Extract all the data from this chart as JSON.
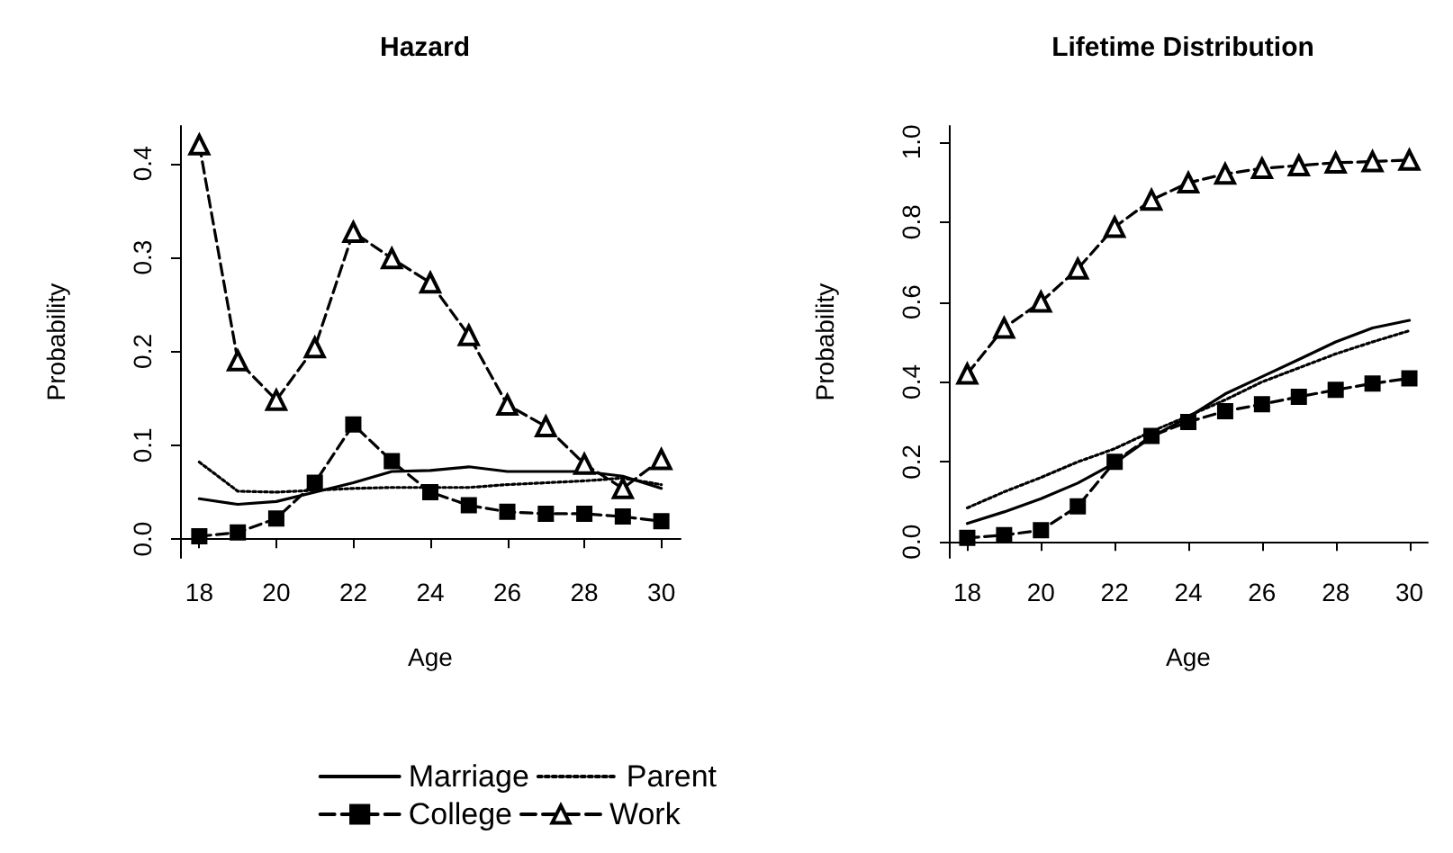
{
  "chart_data": [
    {
      "type": "line",
      "title": "Hazard",
      "xlabel": "Age",
      "ylabel": "Probability",
      "x": [
        18,
        19,
        20,
        21,
        22,
        23,
        24,
        25,
        26,
        27,
        28,
        29,
        30
      ],
      "xlim": [
        17.5,
        30.5
      ],
      "xticks": [
        18,
        20,
        22,
        24,
        26,
        28,
        30
      ],
      "ylim": [
        -0.02,
        0.44
      ],
      "yticks": [
        {
          "value": 0,
          "label": "0.0"
        },
        {
          "value": 0.1,
          "label": "0.1"
        },
        {
          "value": 0.2,
          "label": "0.2"
        },
        {
          "value": 0.3,
          "label": "0.3"
        },
        {
          "value": 0.4,
          "label": "0.4"
        }
      ],
      "grid": false,
      "legend": "bottom right",
      "series": [
        {
          "name": "Marriage",
          "color": "#000000",
          "line_style": "solid",
          "marker": "none",
          "values": [
            0.043,
            0.037,
            0.04,
            0.05,
            0.06,
            0.072,
            0.073,
            0.077,
            0.072,
            0.072,
            0.072,
            0.067,
            0.054
          ]
        },
        {
          "name": "Parent",
          "color": "#000000",
          "line_style": "dotted",
          "marker": "none",
          "values": [
            0.082,
            0.051,
            0.05,
            0.052,
            0.054,
            0.055,
            0.055,
            0.055,
            0.058,
            0.06,
            0.062,
            0.065,
            0.058
          ]
        },
        {
          "name": "College",
          "color": "#000000",
          "line_style": "dashed",
          "marker": "square",
          "values": [
            0.003,
            0.007,
            0.022,
            0.06,
            0.122,
            0.083,
            0.05,
            0.036,
            0.029,
            0.027,
            0.027,
            0.024,
            0.019
          ]
        },
        {
          "name": "Work",
          "color": "#000000",
          "line_style": "dashed",
          "marker": "triangle",
          "values": [
            0.42,
            0.19,
            0.148,
            0.204,
            0.327,
            0.299,
            0.273,
            0.217,
            0.143,
            0.12,
            0.08,
            0.054,
            0.085
          ]
        }
      ]
    },
    {
      "type": "line",
      "title": "Lifetime Distribution",
      "xlabel": "Age",
      "ylabel": "Probability",
      "x": [
        18,
        19,
        20,
        21,
        22,
        23,
        24,
        25,
        26,
        27,
        28,
        29,
        30
      ],
      "xlim": [
        17.5,
        30.5
      ],
      "xticks": [
        18,
        20,
        22,
        24,
        26,
        28,
        30
      ],
      "ylim": [
        -0.04,
        1.04
      ],
      "yticks": [
        {
          "value": 0,
          "label": "0.0"
        },
        {
          "value": 0.2,
          "label": "0.2"
        },
        {
          "value": 0.4,
          "label": "0.4"
        },
        {
          "value": 0.6,
          "label": "0.6"
        },
        {
          "value": 0.8,
          "label": "0.8"
        },
        {
          "value": 1,
          "label": "1.0"
        }
      ],
      "grid": false,
      "series": [
        {
          "color": "#000000",
          "line_style": "solid",
          "marker": "none",
          "values": [
            0.046,
            0.075,
            0.108,
            0.147,
            0.197,
            0.262,
            0.312,
            0.37,
            0.413,
            0.456,
            0.5,
            0.535,
            0.554
          ]
        },
        {
          "color": "#000000",
          "line_style": "dotted",
          "marker": "none",
          "values": [
            0.085,
            0.125,
            0.161,
            0.2,
            0.233,
            0.276,
            0.315,
            0.355,
            0.4,
            0.435,
            0.47,
            0.5,
            0.528
          ]
        },
        {
          "color": "#000000",
          "line_style": "dashed",
          "marker": "square",
          "values": [
            0.01,
            0.017,
            0.029,
            0.089,
            0.2,
            0.265,
            0.3,
            0.327,
            0.344,
            0.363,
            0.38,
            0.396,
            0.409
          ]
        },
        {
          "color": "#000000",
          "line_style": "dashed",
          "marker": "triangle",
          "values": [
            0.42,
            0.535,
            0.6,
            0.683,
            0.787,
            0.855,
            0.898,
            0.92,
            0.934,
            0.941,
            0.948,
            0.951,
            0.955
          ]
        }
      ]
    }
  ]
}
